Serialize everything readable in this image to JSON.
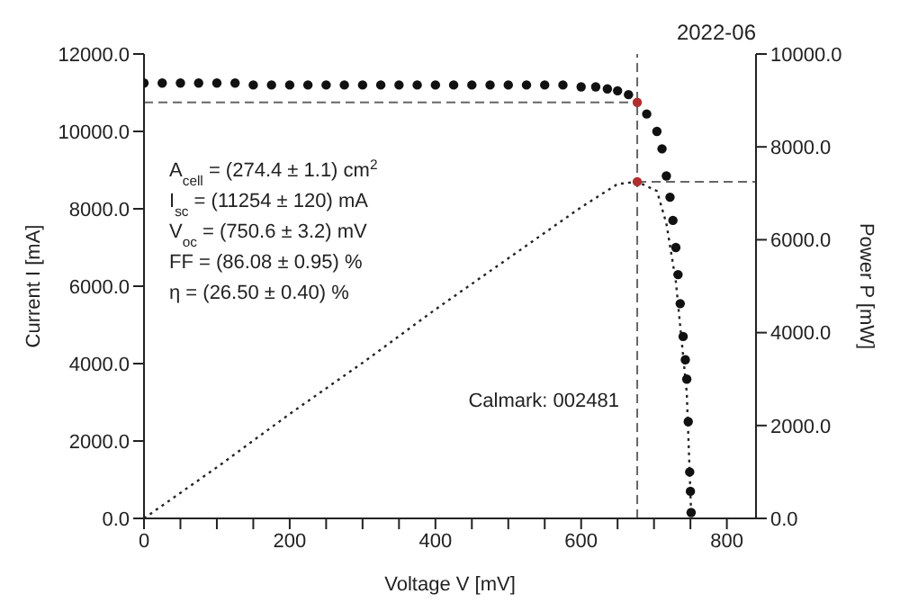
{
  "chart_data": {
    "type": "scatter",
    "title": "2022-06",
    "xlabel": "Voltage V [mV]",
    "ylabel": "Current I [mA]",
    "y2label": "Power P [mW]",
    "annotations": [
      "A$_{cell}$ = (274.4 ± 1.1) cm$^{2}$",
      "I$_{sc}$ = (11254 ± 120) mA",
      "V$_{oc}$ = (750.6 ± 3.2) mV",
      "FF = (86.08 ± 0.95) %",
      "η = (26.50 ± 0.40) %",
      "Calmark: 002481"
    ],
    "series": [
      {
        "color": "#111111",
        "marker": "circle",
        "x": [
          0,
          25,
          50,
          75,
          100,
          125,
          150,
          175,
          200,
          225,
          250,
          275,
          300,
          325,
          350,
          375,
          400,
          425,
          450,
          475,
          500,
          525,
          550,
          575,
          600,
          620,
          636,
          650,
          665,
          690,
          704,
          711,
          717,
          722,
          726,
          730,
          733,
          736,
          740,
          743,
          745,
          747,
          749,
          750,
          751
        ],
        "values": [
          11250,
          11250,
          11250,
          11250,
          11250,
          11250,
          11200,
          11200,
          11200,
          11200,
          11200,
          11200,
          11200,
          11200,
          11200,
          11200,
          11200,
          11200,
          11200,
          11200,
          11200,
          11200,
          11200,
          11200,
          11150,
          11150,
          11100,
          11050,
          10950,
          10450,
          10000,
          9550,
          8850,
          8300,
          7700,
          7000,
          6300,
          5550,
          4700,
          4100,
          3600,
          2500,
          1200,
          700,
          150
        ]
      },
      {
        "type": "line",
        "axis": "y2",
        "color": "#222222",
        "line_style": "dotted",
        "marker": "none",
        "x": [
          0,
          100,
          200,
          300,
          400,
          500,
          600,
          650,
          677,
          704,
          717,
          730,
          740,
          745,
          751
        ],
        "values": [
          0,
          1100,
          2250,
          3350,
          4500,
          5600,
          6700,
          7200,
          7250,
          7050,
          6350,
          5100,
          3500,
          2700,
          100
        ]
      },
      {
        "color": "#b03030",
        "marker": "circle",
        "x": [
          677
        ],
        "values": [
          10750
        ]
      },
      {
        "axis": "y2",
        "color": "#b03030",
        "marker": "circle",
        "x": [
          677
        ],
        "values": [
          7250
        ]
      }
    ],
    "ref_lines": [
      {
        "axis": "x",
        "value": 677,
        "line_style": "dashed",
        "color": "#666666"
      },
      {
        "axis": "y",
        "value": 10750,
        "line_style": "dashed",
        "color": "#666666"
      },
      {
        "axis": "y2",
        "value": 7250,
        "line_style": "dashed",
        "color": "#666666"
      }
    ],
    "xlim": [
      0,
      840
    ],
    "xticks": [
      0,
      {
        "value": 50,
        "label": null
      },
      {
        "value": 100,
        "label": null
      },
      {
        "value": 150,
        "label": null
      },
      200,
      {
        "value": 250,
        "label": null
      },
      {
        "value": 300,
        "label": null
      },
      {
        "value": 350,
        "label": null
      },
      400,
      {
        "value": 450,
        "label": null
      },
      {
        "value": 500,
        "label": null
      },
      {
        "value": 550,
        "label": null
      },
      600,
      {
        "value": 650,
        "label": null
      },
      {
        "value": 700,
        "label": null
      },
      {
        "value": 750,
        "label": null
      },
      800
    ],
    "ylim": [
      0,
      12000
    ],
    "yticks": [
      {
        "value": 0,
        "label": "0.0"
      },
      {
        "value": 2000,
        "label": "2000.0"
      },
      {
        "value": 4000,
        "label": "4000.0"
      },
      {
        "value": 6000,
        "label": "6000.0"
      },
      {
        "value": 8000,
        "label": "8000.0"
      },
      {
        "value": 10000,
        "label": "10000.0"
      },
      {
        "value": 12000,
        "label": "12000.0"
      }
    ],
    "y2lim": [
      0,
      10000
    ],
    "y2ticks": [
      {
        "value": 0,
        "label": "0.0"
      },
      {
        "value": 2000,
        "label": "2000.0"
      },
      {
        "value": 4000,
        "label": "4000.0"
      },
      {
        "value": 6000,
        "label": "6000.0"
      },
      {
        "value": 8000,
        "label": "8000.0"
      },
      {
        "value": 10000,
        "label": "10000.0"
      }
    ]
  }
}
